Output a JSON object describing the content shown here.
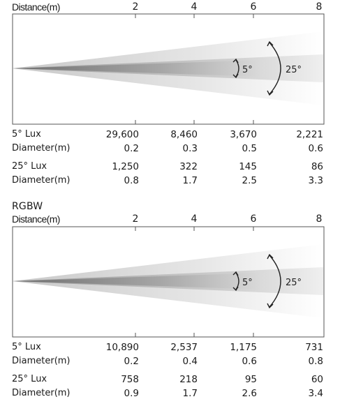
{
  "panels": [
    {
      "section_title": "",
      "distance_label": "Distance(m)",
      "distance_ticks": [
        "2",
        "4",
        "6",
        "8"
      ],
      "beam_angles": [
        "5°",
        "25°"
      ],
      "rows": [
        {
          "label": "5° Lux",
          "values": [
            "29,600",
            "8,460",
            "3,670",
            "2,221"
          ]
        },
        {
          "label": "Diameter(m)",
          "values": [
            "0.2",
            "0.3",
            "0.5",
            "0.6"
          ]
        },
        {
          "label": "25° Lux",
          "values": [
            "1,250",
            "322",
            "145",
            "86"
          ]
        },
        {
          "label": "Diameter(m)",
          "values": [
            "0.8",
            "1.7",
            "2.5",
            "3.3"
          ]
        }
      ]
    },
    {
      "section_title": "RGBW",
      "distance_label": "Distance(m)",
      "distance_ticks": [
        "2",
        "4",
        "6",
        "8"
      ],
      "beam_angles": [
        "5°",
        "25°"
      ],
      "rows": [
        {
          "label": "5° Lux",
          "values": [
            "10,890",
            "2,537",
            "1,175",
            "731"
          ]
        },
        {
          "label": "Diameter(m)",
          "values": [
            "0.2",
            "0.4",
            "0.6",
            "0.8"
          ]
        },
        {
          "label": "25° Lux",
          "values": [
            "758",
            "218",
            "95",
            "60"
          ]
        },
        {
          "label": "Diameter(m)",
          "values": [
            "0.9",
            "1.7",
            "2.6",
            "3.4"
          ]
        }
      ]
    }
  ]
}
